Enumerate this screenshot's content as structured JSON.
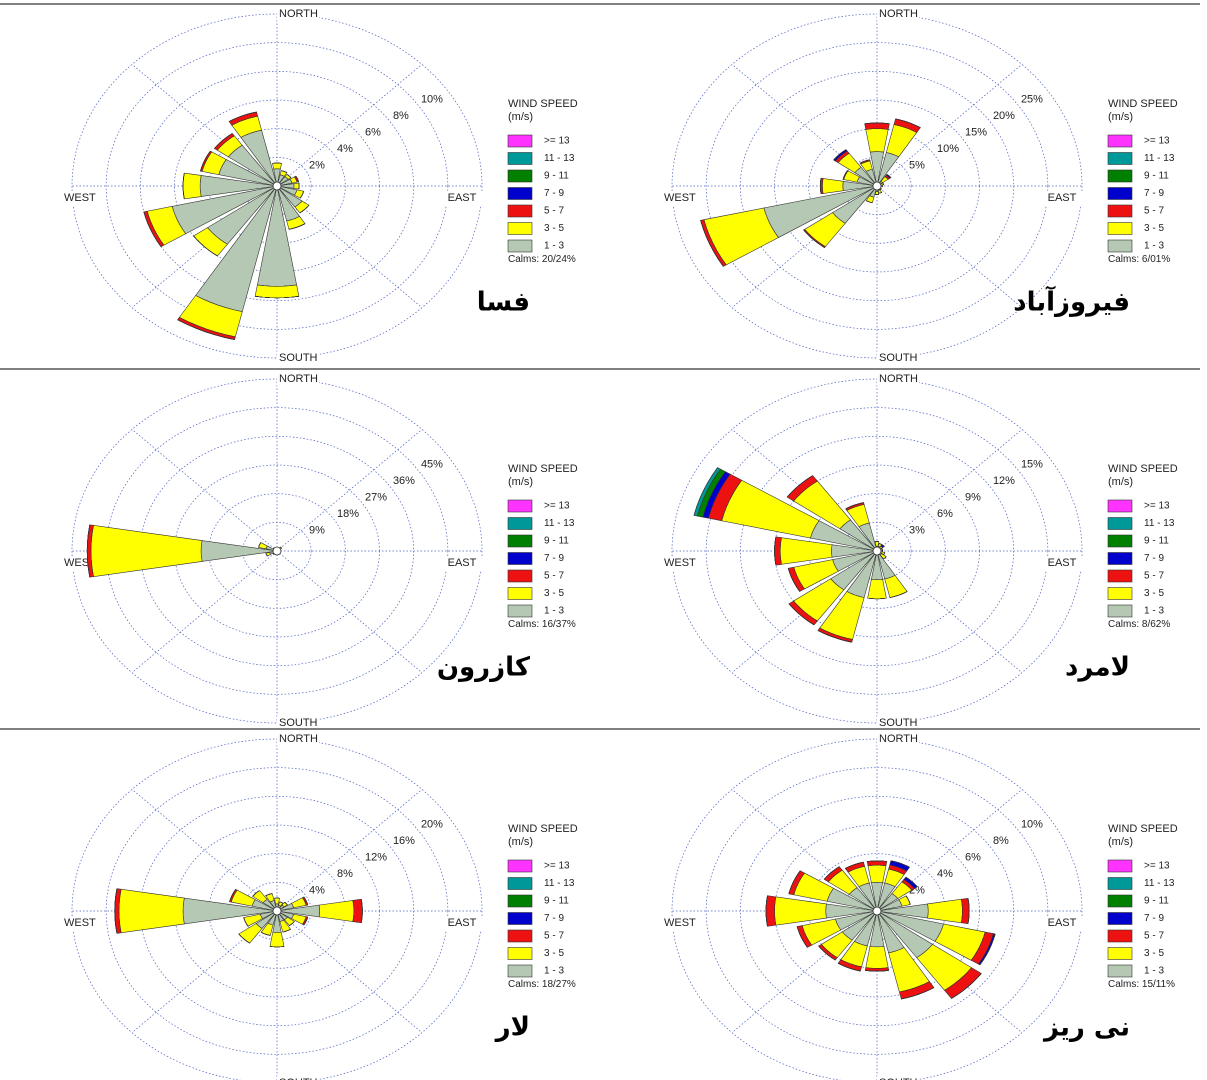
{
  "chart_data": [
    {
      "type": "wind_rose",
      "title": "فسا",
      "legend_title": "WIND SPEED",
      "legend_subtitle": "(m/s)",
      "calms": "Calms: 20/24%",
      "direction_labels": [
        "NORTH",
        "EAST",
        "SOUTH",
        "WEST"
      ],
      "rlim": [
        0,
        12
      ],
      "rticks": [
        {
          "value": 2,
          "label": "2%"
        },
        {
          "value": 4,
          "label": "4%"
        },
        {
          "value": 6,
          "label": "6%"
        },
        {
          "value": 8,
          "label": "8%"
        },
        {
          "value": 10,
          "label": "10%"
        }
      ],
      "series": [
        {
          "name": ">= 13",
          "color": "#ff33ff",
          "values": [
            0,
            0,
            0,
            0,
            0,
            0,
            0,
            0,
            0,
            0,
            0,
            0,
            0,
            0,
            0,
            0
          ]
        },
        {
          "name": "11 - 13",
          "color": "#009999",
          "values": [
            0,
            0,
            0,
            0,
            0,
            0,
            0,
            0,
            0,
            0,
            0,
            0,
            0,
            0,
            0,
            0
          ]
        },
        {
          "name": "9 - 11",
          "color": "#008000",
          "values": [
            0,
            0,
            0,
            0,
            0,
            0,
            0,
            0,
            0,
            0,
            0,
            0,
            0,
            0,
            0,
            0
          ]
        },
        {
          "name": "7 - 9",
          "color": "#0000cc",
          "values": [
            0,
            0,
            0,
            0,
            0,
            0,
            0,
            0,
            0,
            0,
            0,
            0,
            0,
            0,
            0,
            0
          ]
        },
        {
          "name": "5 - 7",
          "color": "#ee1111",
          "values": [
            0,
            0,
            0,
            0.1,
            0,
            0,
            0,
            0,
            0,
            0.2,
            0,
            0.2,
            0,
            0.1,
            0.2,
            0.3
          ]
        },
        {
          "name": "3 - 5",
          "color": "#ffff00",
          "values": [
            0.4,
            0.3,
            0.2,
            0.3,
            0.3,
            0.4,
            0.5,
            0.6,
            0.8,
            1.8,
            1,
            1.5,
            1,
            1,
            0.8,
            1
          ]
        },
        {
          "name": "1 - 3",
          "color": "#b4c8b4",
          "values": [
            1.2,
            0.8,
            0.8,
            0.9,
            1,
            1.2,
            1.8,
            2.5,
            7,
            9,
            5,
            6.3,
            4.5,
            3.5,
            3.5,
            4
          ]
        }
      ]
    },
    {
      "type": "wind_rose",
      "title": "فیروزآباد",
      "legend_title": "WIND SPEED",
      "legend_subtitle": "(m/s)",
      "calms": "Calms: 6/01%",
      "direction_labels": [
        "NORTH",
        "EAST",
        "SOUTH",
        "WEST"
      ],
      "rlim": [
        0,
        30
      ],
      "rticks": [
        {
          "value": 5,
          "label": "5%"
        },
        {
          "value": 10,
          "label": "10%"
        },
        {
          "value": 15,
          "label": "15%"
        },
        {
          "value": 20,
          "label": "20%"
        },
        {
          "value": 25,
          "label": "25%"
        }
      ],
      "series": [
        {
          "name": ">= 13",
          "color": "#ff33ff",
          "values": [
            0,
            0,
            0,
            0,
            0,
            0,
            0,
            0,
            0,
            0,
            0,
            0,
            0,
            0,
            0,
            0
          ]
        },
        {
          "name": "11 - 13",
          "color": "#009999",
          "values": [
            0,
            0,
            0,
            0,
            0,
            0,
            0,
            0,
            0,
            0,
            0,
            0,
            0,
            0,
            0,
            0
          ]
        },
        {
          "name": "9 - 11",
          "color": "#008000",
          "values": [
            0,
            0,
            0,
            0,
            0,
            0,
            0,
            0,
            0,
            0,
            0,
            0,
            0,
            0,
            0,
            0
          ]
        },
        {
          "name": "7 - 9",
          "color": "#0000cc",
          "values": [
            0,
            0,
            0.2,
            0,
            0,
            0,
            0,
            0,
            0,
            0,
            0,
            0,
            0,
            0,
            0.3,
            0
          ]
        },
        {
          "name": "5 - 7",
          "color": "#ee1111",
          "values": [
            1,
            1,
            0.3,
            0,
            0,
            0,
            0,
            0,
            0,
            0,
            0.2,
            0.5,
            0.3,
            0.1,
            0.5,
            0.2
          ]
        },
        {
          "name": "3 - 5",
          "color": "#ffff00",
          "values": [
            4,
            5,
            1,
            0.5,
            0.3,
            0.3,
            0.3,
            0.5,
            0.5,
            1,
            5,
            9,
            3,
            2,
            3,
            1.5
          ]
        },
        {
          "name": "1 - 3",
          "color": "#b4c8b4",
          "values": [
            6,
            6,
            1,
            0.5,
            0.5,
            0.3,
            0.5,
            0.8,
            1,
            2,
            8,
            17,
            5,
            3,
            4,
            3
          ]
        }
      ]
    },
    {
      "type": "wind_rose",
      "title": "کازرون",
      "legend_title": "WIND SPEED",
      "legend_subtitle": "(m/s)",
      "calms": "Calms: 16/37%",
      "direction_labels": [
        "NORTH",
        "EAST",
        "SOUTH",
        "WEST"
      ],
      "rlim": [
        0,
        54
      ],
      "rticks": [
        {
          "value": 9,
          "label": "9%"
        },
        {
          "value": 18,
          "label": "18%"
        },
        {
          "value": 27,
          "label": "27%"
        },
        {
          "value": 36,
          "label": "36%"
        },
        {
          "value": 45,
          "label": "45%"
        }
      ],
      "series": [
        {
          "name": ">= 13",
          "color": "#ff33ff",
          "values": [
            0,
            0,
            0,
            0,
            0,
            0,
            0,
            0,
            0,
            0,
            0,
            0,
            0,
            0,
            0,
            0
          ]
        },
        {
          "name": "11 - 13",
          "color": "#009999",
          "values": [
            0,
            0,
            0,
            0,
            0,
            0,
            0,
            0,
            0,
            0,
            0,
            0,
            0,
            0,
            0,
            0
          ]
        },
        {
          "name": "9 - 11",
          "color": "#008000",
          "values": [
            0,
            0,
            0,
            0,
            0,
            0,
            0,
            0,
            0,
            0,
            0,
            0,
            0,
            0,
            0,
            0
          ]
        },
        {
          "name": "7 - 9",
          "color": "#0000cc",
          "values": [
            0,
            0,
            0,
            0,
            0,
            0,
            0,
            0,
            0,
            0,
            0,
            0,
            0,
            0,
            0,
            0
          ]
        },
        {
          "name": "5 - 7",
          "color": "#ee1111",
          "values": [
            0,
            0,
            0,
            0,
            0,
            0,
            0,
            0,
            0,
            0,
            0,
            0,
            1,
            0,
            0,
            0
          ]
        },
        {
          "name": "3 - 5",
          "color": "#ffff00",
          "values": [
            0.2,
            0.2,
            1,
            0.2,
            0.1,
            0.1,
            0.1,
            0.1,
            0.2,
            0.3,
            0.5,
            1,
            29,
            2,
            0.4,
            0.2
          ]
        },
        {
          "name": "1 - 3",
          "color": "#b4c8b4",
          "values": [
            0.3,
            0.3,
            0.5,
            0.3,
            0.3,
            0.2,
            0.2,
            0.2,
            0.3,
            0.5,
            0.8,
            2,
            20,
            3,
            0.8,
            0.3
          ]
        }
      ]
    },
    {
      "type": "wind_rose",
      "title": "لامرد",
      "legend_title": "WIND SPEED",
      "legend_subtitle": "(m/s)",
      "calms": "Calms: 8/62%",
      "direction_labels": [
        "NORTH",
        "EAST",
        "SOUTH",
        "WEST"
      ],
      "rlim": [
        0,
        18
      ],
      "rticks": [
        {
          "value": 3,
          "label": "3%"
        },
        {
          "value": 6,
          "label": "6%"
        },
        {
          "value": 9,
          "label": "9%"
        },
        {
          "value": 12,
          "label": "12%"
        },
        {
          "value": 15,
          "label": "15%"
        }
      ],
      "series": [
        {
          "name": ">= 13",
          "color": "#ff33ff",
          "values": [
            0,
            0,
            0,
            0,
            0,
            0,
            0,
            0,
            0,
            0,
            0,
            0,
            0,
            0,
            0,
            0
          ]
        },
        {
          "name": "11 - 13",
          "color": "#009999",
          "values": [
            0,
            0,
            0,
            0,
            0,
            0,
            0,
            0,
            0,
            0,
            0,
            0,
            0,
            0.3,
            0,
            0
          ]
        },
        {
          "name": "9 - 11",
          "color": "#008000",
          "values": [
            0,
            0,
            0,
            0,
            0,
            0,
            0,
            0,
            0,
            0,
            0,
            0,
            0,
            0.5,
            0,
            0
          ]
        },
        {
          "name": "7 - 9",
          "color": "#0000cc",
          "values": [
            0,
            0,
            0.2,
            0,
            0,
            0,
            0,
            0,
            0,
            0,
            0,
            0,
            0,
            0.5,
            0,
            0
          ]
        },
        {
          "name": "5 - 7",
          "color": "#ee1111",
          "values": [
            0,
            0,
            0,
            0,
            0,
            0,
            0,
            0,
            0,
            0.3,
            0.5,
            0.5,
            0.5,
            1.2,
            0.7,
            0.2
          ]
        },
        {
          "name": "3 - 5",
          "color": "#ffff00",
          "values": [
            0.5,
            0.3,
            0.2,
            0.2,
            0.2,
            0.3,
            0.5,
            2,
            2,
            4.5,
            4,
            3.5,
            4.5,
            8,
            5,
            2
          ]
        },
        {
          "name": "1 - 3",
          "color": "#b4c8b4",
          "values": [
            0.5,
            0.5,
            0.4,
            0.3,
            0.3,
            0.4,
            0.5,
            3,
            3,
            5,
            5,
            4,
            4,
            6,
            4,
            3
          ]
        }
      ]
    },
    {
      "type": "wind_rose",
      "title": "لار",
      "legend_title": "WIND SPEED",
      "legend_subtitle": "(m/s)",
      "calms": "Calms: 18/27%",
      "direction_labels": [
        "NORTH",
        "EAST",
        "SOUTH",
        "WEST"
      ],
      "rlim": [
        0,
        24
      ],
      "rticks": [
        {
          "value": 4,
          "label": "4%"
        },
        {
          "value": 8,
          "label": "8%"
        },
        {
          "value": 12,
          "label": "12%"
        },
        {
          "value": 16,
          "label": "16%"
        },
        {
          "value": 20,
          "label": "20%"
        }
      ],
      "series": [
        {
          "name": ">= 13",
          "color": "#ff33ff",
          "values": [
            0,
            0,
            0,
            0,
            0,
            0,
            0,
            0,
            0,
            0,
            0,
            0,
            0,
            0,
            0,
            0
          ]
        },
        {
          "name": "11 - 13",
          "color": "#009999",
          "values": [
            0,
            0,
            0,
            0,
            0,
            0,
            0,
            0,
            0,
            0,
            0,
            0,
            0,
            0,
            0,
            0
          ]
        },
        {
          "name": "9 - 11",
          "color": "#008000",
          "values": [
            0,
            0,
            0,
            0,
            0,
            0,
            0,
            0,
            0,
            0,
            0,
            0,
            0,
            0,
            0,
            0
          ]
        },
        {
          "name": "7 - 9",
          "color": "#0000cc",
          "values": [
            0,
            0,
            0,
            0,
            0,
            0,
            0,
            0,
            0,
            0,
            0,
            0,
            0,
            0,
            0,
            0
          ]
        },
        {
          "name": "5 - 7",
          "color": "#ee1111",
          "values": [
            0,
            0,
            0,
            0.2,
            1,
            0.2,
            0,
            0,
            0,
            0,
            0,
            0,
            0.5,
            0.2,
            0,
            0
          ]
        },
        {
          "name": "3 - 5",
          "color": "#ffff00",
          "values": [
            0.8,
            0.5,
            0.5,
            1.5,
            4,
            1.5,
            1,
            1.5,
            2,
            1.5,
            2.5,
            2,
            7.5,
            2.5,
            1.5,
            1
          ]
        },
        {
          "name": "1 - 3",
          "color": "#b4c8b4",
          "values": [
            1,
            0.8,
            1,
            2,
            5,
            2,
            1.5,
            1.5,
            3,
            2,
            3,
            2,
            11,
            3,
            2,
            1.5
          ]
        }
      ]
    },
    {
      "type": "wind_rose",
      "title": "نی ریز",
      "legend_title": "WIND SPEED",
      "legend_subtitle": "(m/s)",
      "calms": "Calms: 15/11%",
      "direction_labels": [
        "NORTH",
        "EAST",
        "SOUTH",
        "WEST"
      ],
      "rlim": [
        0,
        12
      ],
      "rticks": [
        {
          "value": 2,
          "label": "2%"
        },
        {
          "value": 4,
          "label": "4%"
        },
        {
          "value": 6,
          "label": "6%"
        },
        {
          "value": 8,
          "label": "8%"
        },
        {
          "value": 10,
          "label": "10%"
        }
      ],
      "series": [
        {
          "name": ">= 13",
          "color": "#ff33ff",
          "values": [
            0,
            0,
            0,
            0,
            0,
            0,
            0,
            0,
            0,
            0,
            0,
            0,
            0,
            0,
            0,
            0
          ]
        },
        {
          "name": "11 - 13",
          "color": "#009999",
          "values": [
            0,
            0,
            0,
            0,
            0,
            0,
            0,
            0,
            0,
            0,
            0,
            0,
            0,
            0,
            0,
            0
          ]
        },
        {
          "name": "9 - 11",
          "color": "#008000",
          "values": [
            0,
            0,
            0,
            0,
            0,
            0,
            0,
            0,
            0,
            0,
            0,
            0,
            0,
            0,
            0,
            0
          ]
        },
        {
          "name": "7 - 9",
          "color": "#0000cc",
          "values": [
            0,
            0.3,
            0.2,
            0,
            0,
            0.1,
            0,
            0,
            0,
            0,
            0,
            0,
            0,
            0,
            0,
            0
          ]
        },
        {
          "name": "5 - 7",
          "color": "#ee1111",
          "values": [
            0.3,
            0.3,
            0.2,
            0,
            0.4,
            0.5,
            0.7,
            0.5,
            0.2,
            0.3,
            0.2,
            0.3,
            0.5,
            0.3,
            0.3,
            0.3
          ]
        },
        {
          "name": "3 - 5",
          "color": "#ffff00",
          "values": [
            1.2,
            1,
            1,
            0.5,
            2,
            2.5,
            2.8,
            2.8,
            1.5,
            1.5,
            1.5,
            2,
            3,
            2,
            1.5,
            1.2
          ]
        },
        {
          "name": "1 - 3",
          "color": "#b4c8b4",
          "values": [
            2,
            2,
            1.5,
            1.5,
            3,
            4,
            4,
            3,
            2.5,
            2.5,
            2.5,
            2.5,
            3,
            3,
            2,
            2
          ]
        }
      ]
    }
  ]
}
